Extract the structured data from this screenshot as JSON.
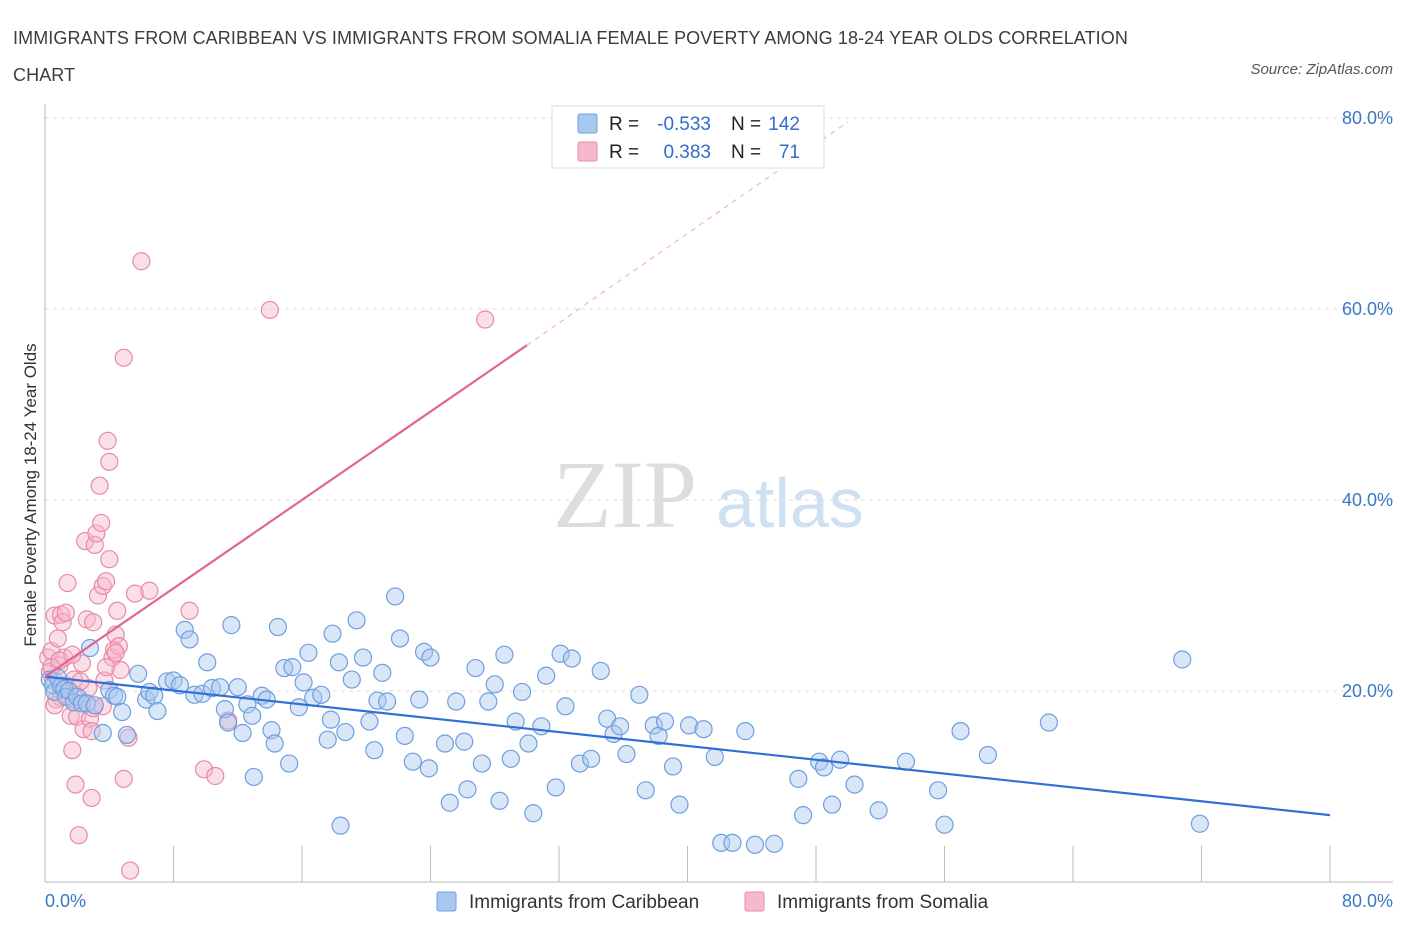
{
  "title": "IMMIGRANTS FROM CARIBBEAN VS IMMIGRANTS FROM SOMALIA FEMALE POVERTY AMONG 18-24 YEAR OLDS CORRELATION CHART",
  "source": "Source: ZipAtlas.com",
  "watermark": {
    "zip": "ZIP",
    "atlas": "atlas"
  },
  "colors": {
    "caribbean_fill": "#a9c8f0",
    "caribbean_stroke": "#6e9fdf",
    "caribbean_line": "#2f6fd6",
    "somalia_fill": "#f6b9cc",
    "somalia_stroke": "#e88aa8",
    "somalia_line": "#e06690",
    "accent_text": "#3b78c6",
    "grid": "#dcdcdc"
  },
  "legend": {
    "rows": [
      {
        "r_label": "R =",
        "r_value": "-0.533",
        "n_label": "N =",
        "n_value": "142"
      },
      {
        "r_label": "R =",
        "r_value": "0.383",
        "n_label": "N =",
        "n_value": "71"
      }
    ]
  },
  "chart_data": {
    "type": "scatter",
    "title": "IMMIGRANTS FROM CARIBBEAN VS IMMIGRANTS FROM SOMALIA FEMALE POVERTY AMONG 18-24 YEAR OLDS CORRELATION CHART",
    "xlabel": "",
    "ylabel": "Female Poverty Among 18-24 Year Olds",
    "xlim": [
      0,
      80
    ],
    "ylim": [
      0,
      80
    ],
    "x_tick_labels": [
      "0.0%",
      "80.0%"
    ],
    "y_tick_labels": [
      "20.0%",
      "40.0%",
      "60.0%",
      "80.0%"
    ],
    "y_ticks": [
      20,
      40,
      60,
      80
    ],
    "legend_position": "bottom",
    "series": [
      {
        "name": "Immigrants from Caribbean",
        "R": -0.533,
        "N": 142,
        "trend": {
          "x0": 0,
          "y0": 21.5,
          "x1": 80,
          "y1": 7.0
        },
        "points": [
          [
            0.3,
            21.2
          ],
          [
            0.5,
            20.6
          ],
          [
            0.6,
            19.9
          ],
          [
            0.8,
            21.4
          ],
          [
            1.0,
            20.5
          ],
          [
            1.2,
            20.2
          ],
          [
            1.3,
            19.4
          ],
          [
            1.5,
            20.0
          ],
          [
            1.8,
            18.8
          ],
          [
            2.0,
            19.4
          ],
          [
            2.3,
            18.7
          ],
          [
            2.6,
            18.7
          ],
          [
            2.8,
            24.5
          ],
          [
            3.1,
            18.5
          ],
          [
            3.6,
            15.6
          ],
          [
            4.0,
            20.1
          ],
          [
            4.3,
            19.5
          ],
          [
            4.5,
            19.4
          ],
          [
            4.8,
            17.8
          ],
          [
            5.1,
            15.4
          ],
          [
            5.8,
            21.8
          ],
          [
            6.3,
            19.1
          ],
          [
            6.5,
            19.9
          ],
          [
            6.8,
            19.5
          ],
          [
            7.0,
            17.9
          ],
          [
            7.6,
            21.0
          ],
          [
            8.0,
            21.1
          ],
          [
            8.4,
            20.6
          ],
          [
            8.7,
            26.4
          ],
          [
            9.0,
            25.4
          ],
          [
            9.3,
            19.6
          ],
          [
            9.8,
            19.7
          ],
          [
            10.1,
            23.0
          ],
          [
            10.4,
            20.3
          ],
          [
            10.9,
            20.4
          ],
          [
            11.2,
            18.1
          ],
          [
            11.4,
            16.7
          ],
          [
            11.6,
            26.9
          ],
          [
            12.0,
            20.4
          ],
          [
            12.3,
            15.6
          ],
          [
            12.6,
            18.6
          ],
          [
            12.9,
            17.4
          ],
          [
            13.0,
            11.0
          ],
          [
            13.5,
            19.5
          ],
          [
            13.8,
            19.1
          ],
          [
            14.1,
            15.9
          ],
          [
            14.3,
            14.5
          ],
          [
            14.5,
            26.7
          ],
          [
            14.9,
            22.4
          ],
          [
            15.2,
            12.4
          ],
          [
            15.4,
            22.5
          ],
          [
            15.8,
            18.3
          ],
          [
            16.1,
            20.9
          ],
          [
            16.4,
            24.0
          ],
          [
            16.7,
            19.3
          ],
          [
            17.2,
            19.6
          ],
          [
            17.6,
            14.9
          ],
          [
            17.8,
            17.0
          ],
          [
            17.9,
            26.0
          ],
          [
            18.3,
            23.0
          ],
          [
            18.4,
            5.9
          ],
          [
            18.7,
            15.7
          ],
          [
            19.1,
            21.2
          ],
          [
            19.4,
            27.4
          ],
          [
            19.8,
            23.5
          ],
          [
            20.2,
            16.8
          ],
          [
            20.5,
            13.8
          ],
          [
            20.7,
            19.0
          ],
          [
            21.0,
            21.9
          ],
          [
            21.3,
            18.9
          ],
          [
            21.8,
            29.9
          ],
          [
            22.1,
            25.5
          ],
          [
            22.4,
            15.3
          ],
          [
            22.9,
            12.6
          ],
          [
            23.3,
            19.1
          ],
          [
            23.6,
            24.1
          ],
          [
            23.9,
            11.9
          ],
          [
            24.0,
            23.5
          ],
          [
            24.9,
            14.5
          ],
          [
            25.2,
            8.3
          ],
          [
            25.6,
            18.9
          ],
          [
            26.1,
            14.7
          ],
          [
            26.3,
            9.7
          ],
          [
            26.8,
            22.4
          ],
          [
            27.2,
            12.4
          ],
          [
            27.6,
            18.9
          ],
          [
            28.0,
            20.7
          ],
          [
            28.3,
            8.5
          ],
          [
            28.6,
            23.8
          ],
          [
            29.0,
            12.9
          ],
          [
            29.3,
            16.8
          ],
          [
            29.7,
            19.9
          ],
          [
            30.1,
            14.5
          ],
          [
            30.4,
            7.2
          ],
          [
            30.9,
            16.3
          ],
          [
            31.2,
            21.6
          ],
          [
            31.8,
            9.9
          ],
          [
            32.1,
            23.9
          ],
          [
            32.4,
            18.4
          ],
          [
            32.8,
            23.4
          ],
          [
            33.3,
            12.4
          ],
          [
            34.0,
            12.9
          ],
          [
            34.6,
            22.1
          ],
          [
            35.0,
            17.1
          ],
          [
            35.4,
            15.5
          ],
          [
            35.8,
            16.3
          ],
          [
            36.2,
            13.4
          ],
          [
            37.0,
            19.6
          ],
          [
            37.4,
            9.6
          ],
          [
            37.9,
            16.4
          ],
          [
            38.2,
            15.3
          ],
          [
            38.6,
            16.8
          ],
          [
            39.1,
            12.1
          ],
          [
            39.5,
            8.1
          ],
          [
            40.1,
            16.4
          ],
          [
            41.0,
            16.0
          ],
          [
            41.7,
            13.1
          ],
          [
            42.1,
            4.1
          ],
          [
            42.8,
            4.1
          ],
          [
            43.6,
            15.8
          ],
          [
            44.2,
            3.9
          ],
          [
            45.4,
            4.0
          ],
          [
            46.9,
            10.8
          ],
          [
            47.2,
            7.0
          ],
          [
            48.2,
            12.6
          ],
          [
            48.5,
            12.0
          ],
          [
            49.0,
            8.1
          ],
          [
            49.5,
            12.8
          ],
          [
            50.4,
            10.2
          ],
          [
            51.9,
            7.5
          ],
          [
            53.6,
            12.6
          ],
          [
            55.6,
            9.6
          ],
          [
            56.0,
            6.0
          ],
          [
            57.0,
            15.8
          ],
          [
            58.7,
            13.3
          ],
          [
            62.5,
            16.7
          ],
          [
            70.8,
            23.3
          ],
          [
            71.9,
            6.1
          ]
        ]
      },
      {
        "name": "Immigrants from Somalia",
        "R": 0.383,
        "N": 71,
        "trend": {
          "x0": 0,
          "y0": 21.5,
          "x1": 30,
          "y1": 56.2
        },
        "trend_extended": {
          "x0": 30,
          "y0": 56.2,
          "x1": 50,
          "y1": 79.6
        },
        "points": [
          [
            0.2,
            23.5
          ],
          [
            0.3,
            22.0
          ],
          [
            0.4,
            24.2
          ],
          [
            0.5,
            21.2
          ],
          [
            0.6,
            27.9
          ],
          [
            0.7,
            19.1
          ],
          [
            0.8,
            25.5
          ],
          [
            0.9,
            22.7
          ],
          [
            1.0,
            19.3
          ],
          [
            1.0,
            28.0
          ],
          [
            1.1,
            27.2
          ],
          [
            1.2,
            23.5
          ],
          [
            1.3,
            20.6
          ],
          [
            1.4,
            31.3
          ],
          [
            1.5,
            19.3
          ],
          [
            1.6,
            17.4
          ],
          [
            1.7,
            13.8
          ],
          [
            1.8,
            21.2
          ],
          [
            1.9,
            10.2
          ],
          [
            2.0,
            17.3
          ],
          [
            2.1,
            4.9
          ],
          [
            2.2,
            19.1
          ],
          [
            2.3,
            22.9
          ],
          [
            2.4,
            16.0
          ],
          [
            2.5,
            35.7
          ],
          [
            2.6,
            27.5
          ],
          [
            2.7,
            20.3
          ],
          [
            2.8,
            17.1
          ],
          [
            2.9,
            15.8
          ],
          [
            2.9,
            8.8
          ],
          [
            3.0,
            18.2
          ],
          [
            3.1,
            35.3
          ],
          [
            3.2,
            36.5
          ],
          [
            3.3,
            30.0
          ],
          [
            3.4,
            41.5
          ],
          [
            3.5,
            37.6
          ],
          [
            3.6,
            18.4
          ],
          [
            3.6,
            31.0
          ],
          [
            3.7,
            21.1
          ],
          [
            3.8,
            31.5
          ],
          [
            3.9,
            46.2
          ],
          [
            4.0,
            33.8
          ],
          [
            4.0,
            44.0
          ],
          [
            4.2,
            23.5
          ],
          [
            4.3,
            24.3
          ],
          [
            4.4,
            25.9
          ],
          [
            4.5,
            28.4
          ],
          [
            4.6,
            24.7
          ],
          [
            4.7,
            22.2
          ],
          [
            4.9,
            10.8
          ],
          [
            4.9,
            54.9
          ],
          [
            5.2,
            15.1
          ],
          [
            5.3,
            1.2
          ],
          [
            5.6,
            30.2
          ],
          [
            6.0,
            65.0
          ],
          [
            6.5,
            30.5
          ],
          [
            9.0,
            28.4
          ],
          [
            9.9,
            11.8
          ],
          [
            10.6,
            11.1
          ],
          [
            11.4,
            16.9
          ],
          [
            14.0,
            59.9
          ],
          [
            27.4,
            58.9
          ],
          [
            0.4,
            22.5
          ],
          [
            0.9,
            23.2
          ],
          [
            1.7,
            23.8
          ],
          [
            2.2,
            21.0
          ],
          [
            3.0,
            27.2
          ],
          [
            1.3,
            28.2
          ],
          [
            3.8,
            22.5
          ],
          [
            4.4,
            24.0
          ],
          [
            0.6,
            18.5
          ]
        ]
      }
    ]
  },
  "bottom_legend": [
    "Immigrants from Caribbean",
    "Immigrants from Somalia"
  ]
}
